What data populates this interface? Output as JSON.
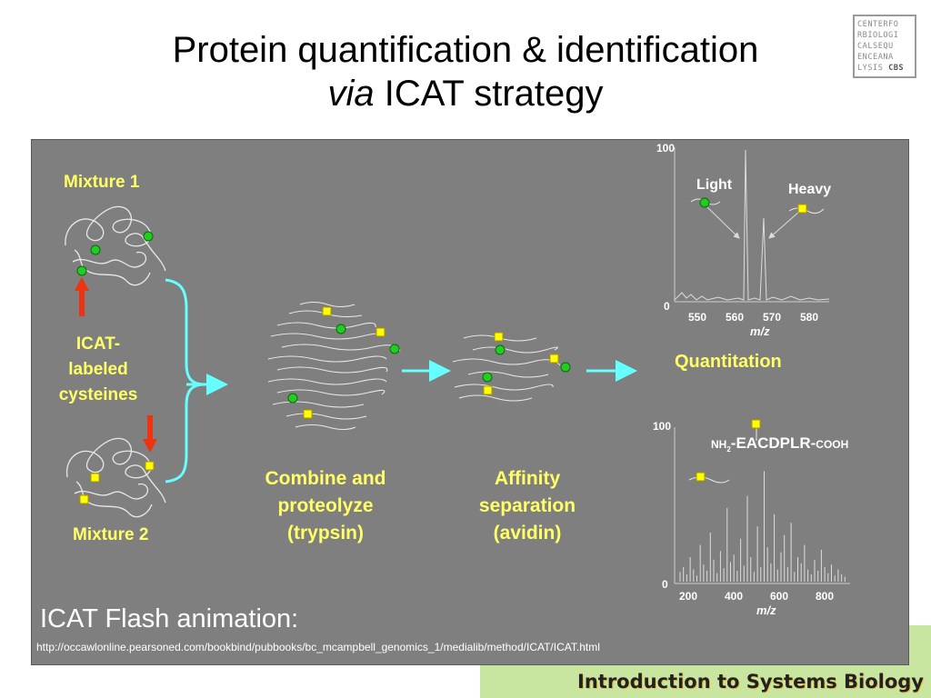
{
  "slide": {
    "title_line1": "Protein quantification & identification",
    "title_line2_italic": "via",
    "title_line2_rest": " ICAT strategy",
    "logo_lines": [
      "CENTERFO",
      "RBIOLOGI",
      "CALSEQU",
      "ENCEANA",
      "LYSIS"
    ],
    "logo_tag": "CBS"
  },
  "diagram": {
    "mixture1": "Mixture 1",
    "mixture2": "Mixture 2",
    "icat_label": [
      "ICAT-",
      "labeled",
      "cysteines"
    ],
    "combine": [
      "Combine and",
      "proteolyze",
      "(trypsin)"
    ],
    "affinity": [
      "Affinity",
      "separation",
      "(avidin)"
    ],
    "quantitation": "Quantitation",
    "flash_title": "ICAT Flash animation:",
    "url": "http://occawlonline.pearsoned.com/bookbind/pubbooks/bc_mcampbell_genomics_1/medialib/method/ICAT/ICAT.html"
  },
  "ms1": {
    "y_top": "100",
    "y_bottom": "0",
    "x_ticks": [
      "550",
      "560",
      "570",
      "580"
    ],
    "x_label": "m/z",
    "light": "Light",
    "heavy": "Heavy"
  },
  "ms2": {
    "y_top": "100",
    "y_bottom": "0",
    "x_ticks": [
      "200",
      "400",
      "600",
      "800"
    ],
    "x_label": "m/z",
    "peptide_prefix": "NH",
    "peptide_sub": "2",
    "peptide_seq": "-EACDPLR-",
    "peptide_suffix": "COOH"
  },
  "footer": {
    "course": "Introduction to Systems Biology"
  },
  "colors": {
    "panel": "#7f7f7f",
    "label_yellow": "#ffff66",
    "arrow_cyan": "#66ffff",
    "light_tag": "#22cc22",
    "heavy_tag": "#ffff00",
    "red_arrow": "#ee3311"
  }
}
